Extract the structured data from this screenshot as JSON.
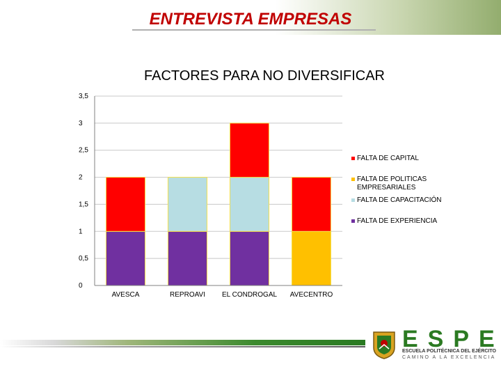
{
  "slide": {
    "title": "ENTREVISTA EMPRESAS"
  },
  "chart_data": {
    "type": "bar",
    "stacked": true,
    "title": "FACTORES PARA NO DIVERSIFICAR",
    "xlabel": "",
    "ylabel": "",
    "categories": [
      "AVESCA",
      "REPROAVI",
      "EL CONDROGAL",
      "AVECENTRO"
    ],
    "ylim": [
      0,
      3.5
    ],
    "yticks": [
      "0",
      "0,5",
      "1",
      "1,5",
      "2",
      "2,5",
      "3",
      "3,5"
    ],
    "grid": true,
    "legend_position": "right",
    "series": [
      {
        "name": "FALTA DE EXPERIENCIA",
        "color": "#7030a0",
        "values": [
          1,
          1,
          1,
          0
        ]
      },
      {
        "name": "FALTA DE CAPACITACIÓN",
        "color": "#b7dde3",
        "values": [
          0,
          1,
          1,
          0
        ]
      },
      {
        "name": "FALTA DE POLITICAS EMPRESARIALES",
        "color": "#ffc000",
        "values": [
          0,
          0,
          0,
          1
        ]
      },
      {
        "name": "FALTA DE CAPITAL",
        "color": "#ff0000",
        "values": [
          1,
          0,
          1,
          1
        ]
      }
    ],
    "legend_order": [
      3,
      2,
      1,
      0
    ]
  },
  "logo": {
    "name": "ESPE",
    "line1": "ESCUELA POLITÉCNICA DEL EJÉRCITO",
    "line2": "CAMINO A LA EXCELENCIA"
  },
  "colors": {
    "title": "#c00000",
    "brand_green": "#2b7a22"
  }
}
